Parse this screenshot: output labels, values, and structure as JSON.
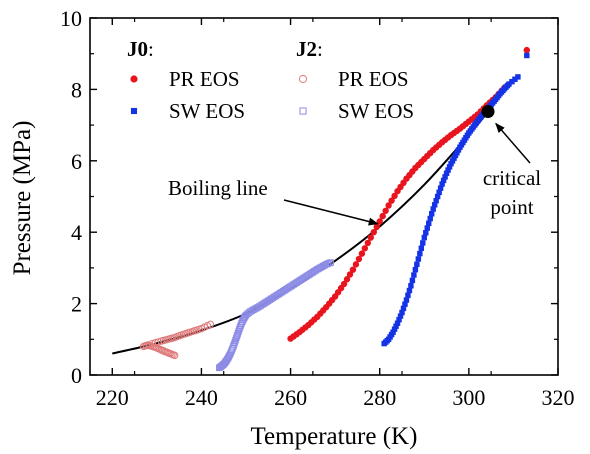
{
  "chart_data": {
    "type": "scatter",
    "xlabel": "Temperature (K)",
    "ylabel": "Pressure (MPa)",
    "xlim": [
      215,
      320
    ],
    "ylim": [
      0,
      10
    ],
    "x_ticks": [
      220,
      240,
      260,
      280,
      300,
      320
    ],
    "y_ticks": [
      0,
      2,
      4,
      6,
      8,
      10
    ],
    "grid": false,
    "legend_position": "top-left",
    "legend_groups": [
      {
        "title": "J0",
        "title_suffix": ":",
        "entries": [
          {
            "label": "PR EOS",
            "marker": "filled-circle",
            "color": "#e8141e"
          },
          {
            "label": "SW EOS",
            "marker": "filled-square",
            "color": "#1433e6"
          }
        ]
      },
      {
        "title": "J2",
        "title_suffix": ":",
        "entries": [
          {
            "label": "PR EOS",
            "marker": "open-circle",
            "color": "#e07a7a"
          },
          {
            "label": "SW EOS",
            "marker": "open-square",
            "color": "#8c8ce6"
          }
        ]
      }
    ],
    "annotations": [
      {
        "text": "Boiling line",
        "x": 264,
        "y": 5.2,
        "arrow_to": [
          280,
          4.18
        ]
      },
      {
        "text_lines": [
          "critical",
          "point"
        ],
        "x": 310,
        "y": 5.5,
        "arrow_to": [
          305.6,
          7.1
        ]
      }
    ],
    "boiling_line": {
      "color": "#000000",
      "x": [
        220,
        230,
        240,
        250,
        260,
        270,
        280,
        290,
        300,
        304.3
      ],
      "y": [
        0.6,
        0.89,
        1.25,
        1.72,
        2.42,
        3.2,
        4.16,
        5.33,
        6.72,
        7.38
      ]
    },
    "critical_point": {
      "x": 304.3,
      "y": 7.38,
      "color": "#000000"
    },
    "series": [
      {
        "name": "J0 PR EOS",
        "marker": "filled-circle",
        "color": "#e8141e",
        "segments": [
          {
            "x": [
              260,
              262,
              264,
              266,
              268,
              270,
              272,
              274,
              276,
              278,
              280,
              282,
              284,
              286,
              288,
              290,
              292,
              294,
              296,
              298,
              300,
              302,
              304,
              306,
              308
            ],
            "y": [
              1.02,
              1.2,
              1.4,
              1.63,
              1.9,
              2.2,
              2.55,
              2.95,
              3.4,
              3.85,
              4.3,
              4.75,
              5.15,
              5.5,
              5.8,
              6.05,
              6.3,
              6.52,
              6.72,
              6.9,
              7.1,
              7.3,
              7.55,
              7.78,
              8.05
            ]
          }
        ],
        "extra_points": [
          {
            "x": 313,
            "y": 9.1
          }
        ]
      },
      {
        "name": "J0 SW EOS",
        "marker": "filled-square",
        "color": "#1433e6",
        "segments": [
          {
            "x": [
              281,
              282,
              283,
              284,
              285,
              286,
              287,
              288,
              289,
              290,
              291,
              292,
              293,
              294,
              295,
              296,
              297,
              298,
              299,
              300,
              301,
              302,
              303,
              304,
              305,
              306,
              307,
              308,
              309,
              311
            ],
            "y": [
              0.88,
              1.0,
              1.2,
              1.45,
              1.75,
              2.1,
              2.5,
              2.95,
              3.4,
              3.85,
              4.25,
              4.65,
              5.0,
              5.35,
              5.65,
              5.92,
              6.15,
              6.38,
              6.58,
              6.78,
              6.95,
              7.12,
              7.28,
              7.43,
              7.57,
              7.72,
              7.88,
              8.02,
              8.15,
              8.35
            ]
          }
        ],
        "extra_points": [
          {
            "x": 313,
            "y": 8.95
          }
        ]
      },
      {
        "name": "J2 PR EOS",
        "marker": "open-circle",
        "color": "#e07a7a",
        "segments": [
          {
            "x": [
              227,
              228,
              229,
              230,
              231,
              232,
              233,
              234
            ],
            "y": [
              0.8,
              0.84,
              0.8,
              0.76,
              0.7,
              0.65,
              0.6,
              0.55
            ]
          },
          {
            "x": [
              229,
              231,
              232.5,
              234,
              235.5,
              237,
              238.5,
              240,
              242
            ],
            "y": [
              0.88,
              0.95,
              1.0,
              1.05,
              1.12,
              1.18,
              1.24,
              1.3,
              1.42
            ]
          }
        ],
        "extra_points": []
      },
      {
        "name": "J2 SW EOS",
        "marker": "open-square",
        "color": "#8c8ce6",
        "segments": [
          {
            "x": [
              244,
              244.5,
              245,
              245.5,
              246,
              246.5,
              247,
              247.5,
              248,
              248.5,
              249,
              249.5,
              250,
              251,
              252,
              253,
              254,
              255,
              256,
              257,
              258,
              259,
              260,
              261,
              262,
              263,
              264,
              265,
              266,
              267,
              268,
              269
            ],
            "y": [
              0.2,
              0.25,
              0.3,
              0.38,
              0.48,
              0.6,
              0.75,
              0.92,
              1.1,
              1.28,
              1.45,
              1.58,
              1.68,
              1.78,
              1.85,
              1.92,
              2.0,
              2.08,
              2.16,
              2.24,
              2.32,
              2.4,
              2.48,
              2.56,
              2.64,
              2.72,
              2.8,
              2.88,
              2.96,
              3.03,
              3.1,
              3.15
            ]
          }
        ],
        "extra_points": []
      }
    ]
  }
}
